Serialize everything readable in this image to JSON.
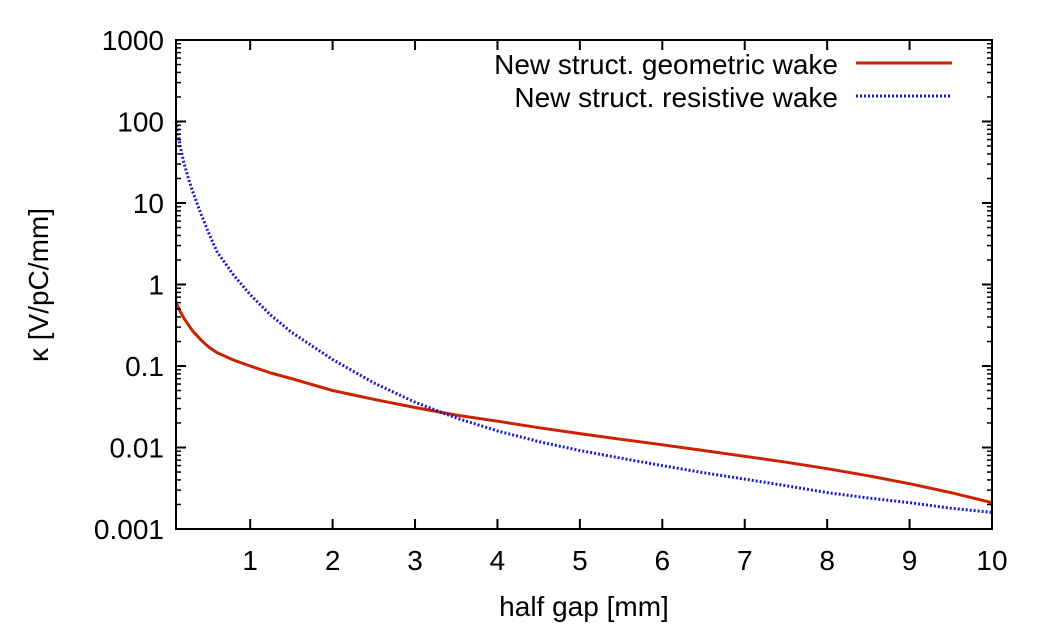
{
  "chart_data": {
    "type": "line",
    "title": "",
    "xlabel": "half gap [mm]",
    "ylabel": "κ [V/pC/mm]",
    "xlim": [
      0.1,
      10
    ],
    "ylim": [
      0.001,
      1000
    ],
    "yscale": "log",
    "grid": false,
    "legend_position": "top-right",
    "x_ticks": [
      1,
      2,
      3,
      4,
      5,
      6,
      7,
      8,
      9,
      10
    ],
    "x_tick_labels": [
      "1",
      "2",
      "3",
      "4",
      "5",
      "6",
      "7",
      "8",
      "9",
      "10"
    ],
    "y_ticks": [
      0.001,
      0.01,
      0.1,
      1,
      10,
      100,
      1000
    ],
    "y_tick_labels": [
      "0.001",
      "0.01",
      "0.1",
      "1",
      "10",
      "100",
      "1000"
    ],
    "series": [
      {
        "name": "New struct. geometric wake",
        "color": "#cc2200",
        "style": "solid",
        "x": [
          0.1,
          0.15,
          0.2,
          0.3,
          0.4,
          0.5,
          0.6,
          0.8,
          1.0,
          1.25,
          1.5,
          2.0,
          2.5,
          3.0,
          3.5,
          4.0,
          4.5,
          5.0,
          5.5,
          6.0,
          6.5,
          7.0,
          7.5,
          8.0,
          8.5,
          9.0,
          9.5,
          10.0
        ],
        "y": [
          0.6,
          0.47,
          0.38,
          0.27,
          0.21,
          0.17,
          0.145,
          0.118,
          0.1,
          0.082,
          0.07,
          0.05,
          0.039,
          0.031,
          0.025,
          0.021,
          0.0175,
          0.0148,
          0.0126,
          0.0108,
          0.0092,
          0.0078,
          0.0066,
          0.0055,
          0.0045,
          0.0036,
          0.0028,
          0.0021
        ]
      },
      {
        "name": "New struct. resistive wake",
        "color": "#1a1acc",
        "style": "dotted",
        "x": [
          0.1,
          0.15,
          0.2,
          0.25,
          0.3,
          0.4,
          0.5,
          0.6,
          0.8,
          1.0,
          1.25,
          1.5,
          2.0,
          2.5,
          3.0,
          3.5,
          4.0,
          4.5,
          5.0,
          5.5,
          6.0,
          6.5,
          7.0,
          7.5,
          8.0,
          8.5,
          9.0,
          9.5,
          10.0
        ],
        "y": [
          100,
          50,
          30,
          20,
          14,
          7.5,
          4.2,
          2.5,
          1.3,
          0.75,
          0.42,
          0.26,
          0.12,
          0.062,
          0.036,
          0.023,
          0.016,
          0.0118,
          0.0092,
          0.0074,
          0.006,
          0.0049,
          0.0041,
          0.0034,
          0.0028,
          0.0024,
          0.0021,
          0.0018,
          0.0016
        ]
      }
    ]
  }
}
